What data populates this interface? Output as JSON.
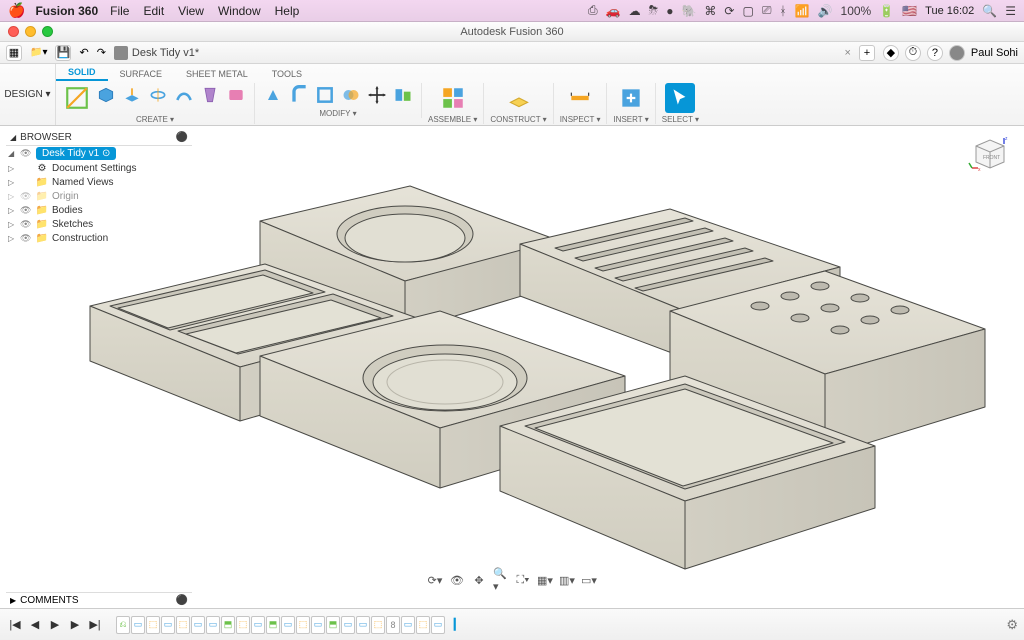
{
  "macmenu": {
    "app": "Fusion 360",
    "items": [
      "File",
      "Edit",
      "View",
      "Window",
      "Help"
    ],
    "clock": "Tue 16:02",
    "battery": "100%",
    "status_icons": [
      "print-icon",
      "car-icon",
      "cloud-icon",
      "umbrella-icon",
      "camera-icon",
      "circle-icon",
      "note-icon",
      "cmd-icon",
      "wave-icon",
      "screen-icon",
      "display-icon",
      "bt-icon",
      "wifi-icon",
      "vol-icon",
      "flag-icon"
    ]
  },
  "window": {
    "title": "Autodesk Fusion 360"
  },
  "qat": {
    "doc": "Desk Tidy v1*",
    "user": "Paul Sohi"
  },
  "ribbon": {
    "design_label": "DESIGN ▾",
    "tabs": [
      "SOLID",
      "SURFACE",
      "SHEET METAL",
      "TOOLS"
    ],
    "active_tab": 0,
    "groups": [
      {
        "label": "CREATE ▾"
      },
      {
        "label": "MODIFY ▾"
      },
      {
        "label": ""
      },
      {
        "label": "ASSEMBLE ▾"
      },
      {
        "label": "CONSTRUCT ▾"
      },
      {
        "label": "INSPECT ▾"
      },
      {
        "label": "INSERT ▾"
      },
      {
        "label": "SELECT ▾"
      }
    ]
  },
  "browser": {
    "title": "BROWSER",
    "root": "Desk Tidy v1",
    "nodes": [
      {
        "label": "Document Settings",
        "icon": "gear"
      },
      {
        "label": "Named Views",
        "icon": "folder"
      },
      {
        "label": "Origin",
        "icon": "folder",
        "eye": true,
        "dim": true
      },
      {
        "label": "Bodies",
        "icon": "folder",
        "eye": true
      },
      {
        "label": "Sketches",
        "icon": "folder",
        "eye": true
      },
      {
        "label": "Construction",
        "icon": "folder",
        "eye": true
      }
    ]
  },
  "comments": {
    "title": "COMMENTS"
  },
  "timeline": {
    "step_count": 22
  },
  "colors": {
    "accent": "#0696d7",
    "model_fill": "#d9d6ca",
    "model_fill_light": "#e3e1d6",
    "model_fill_dark": "#cfccc0",
    "model_edge": "#4a4a46",
    "icon_blue": "#4aa3df",
    "icon_orange": "#f5a623",
    "icon_green": "#6cc24a",
    "icon_purple": "#b084cc",
    "icon_pink": "#e77fb3",
    "icon_yellow": "#f7d154"
  }
}
